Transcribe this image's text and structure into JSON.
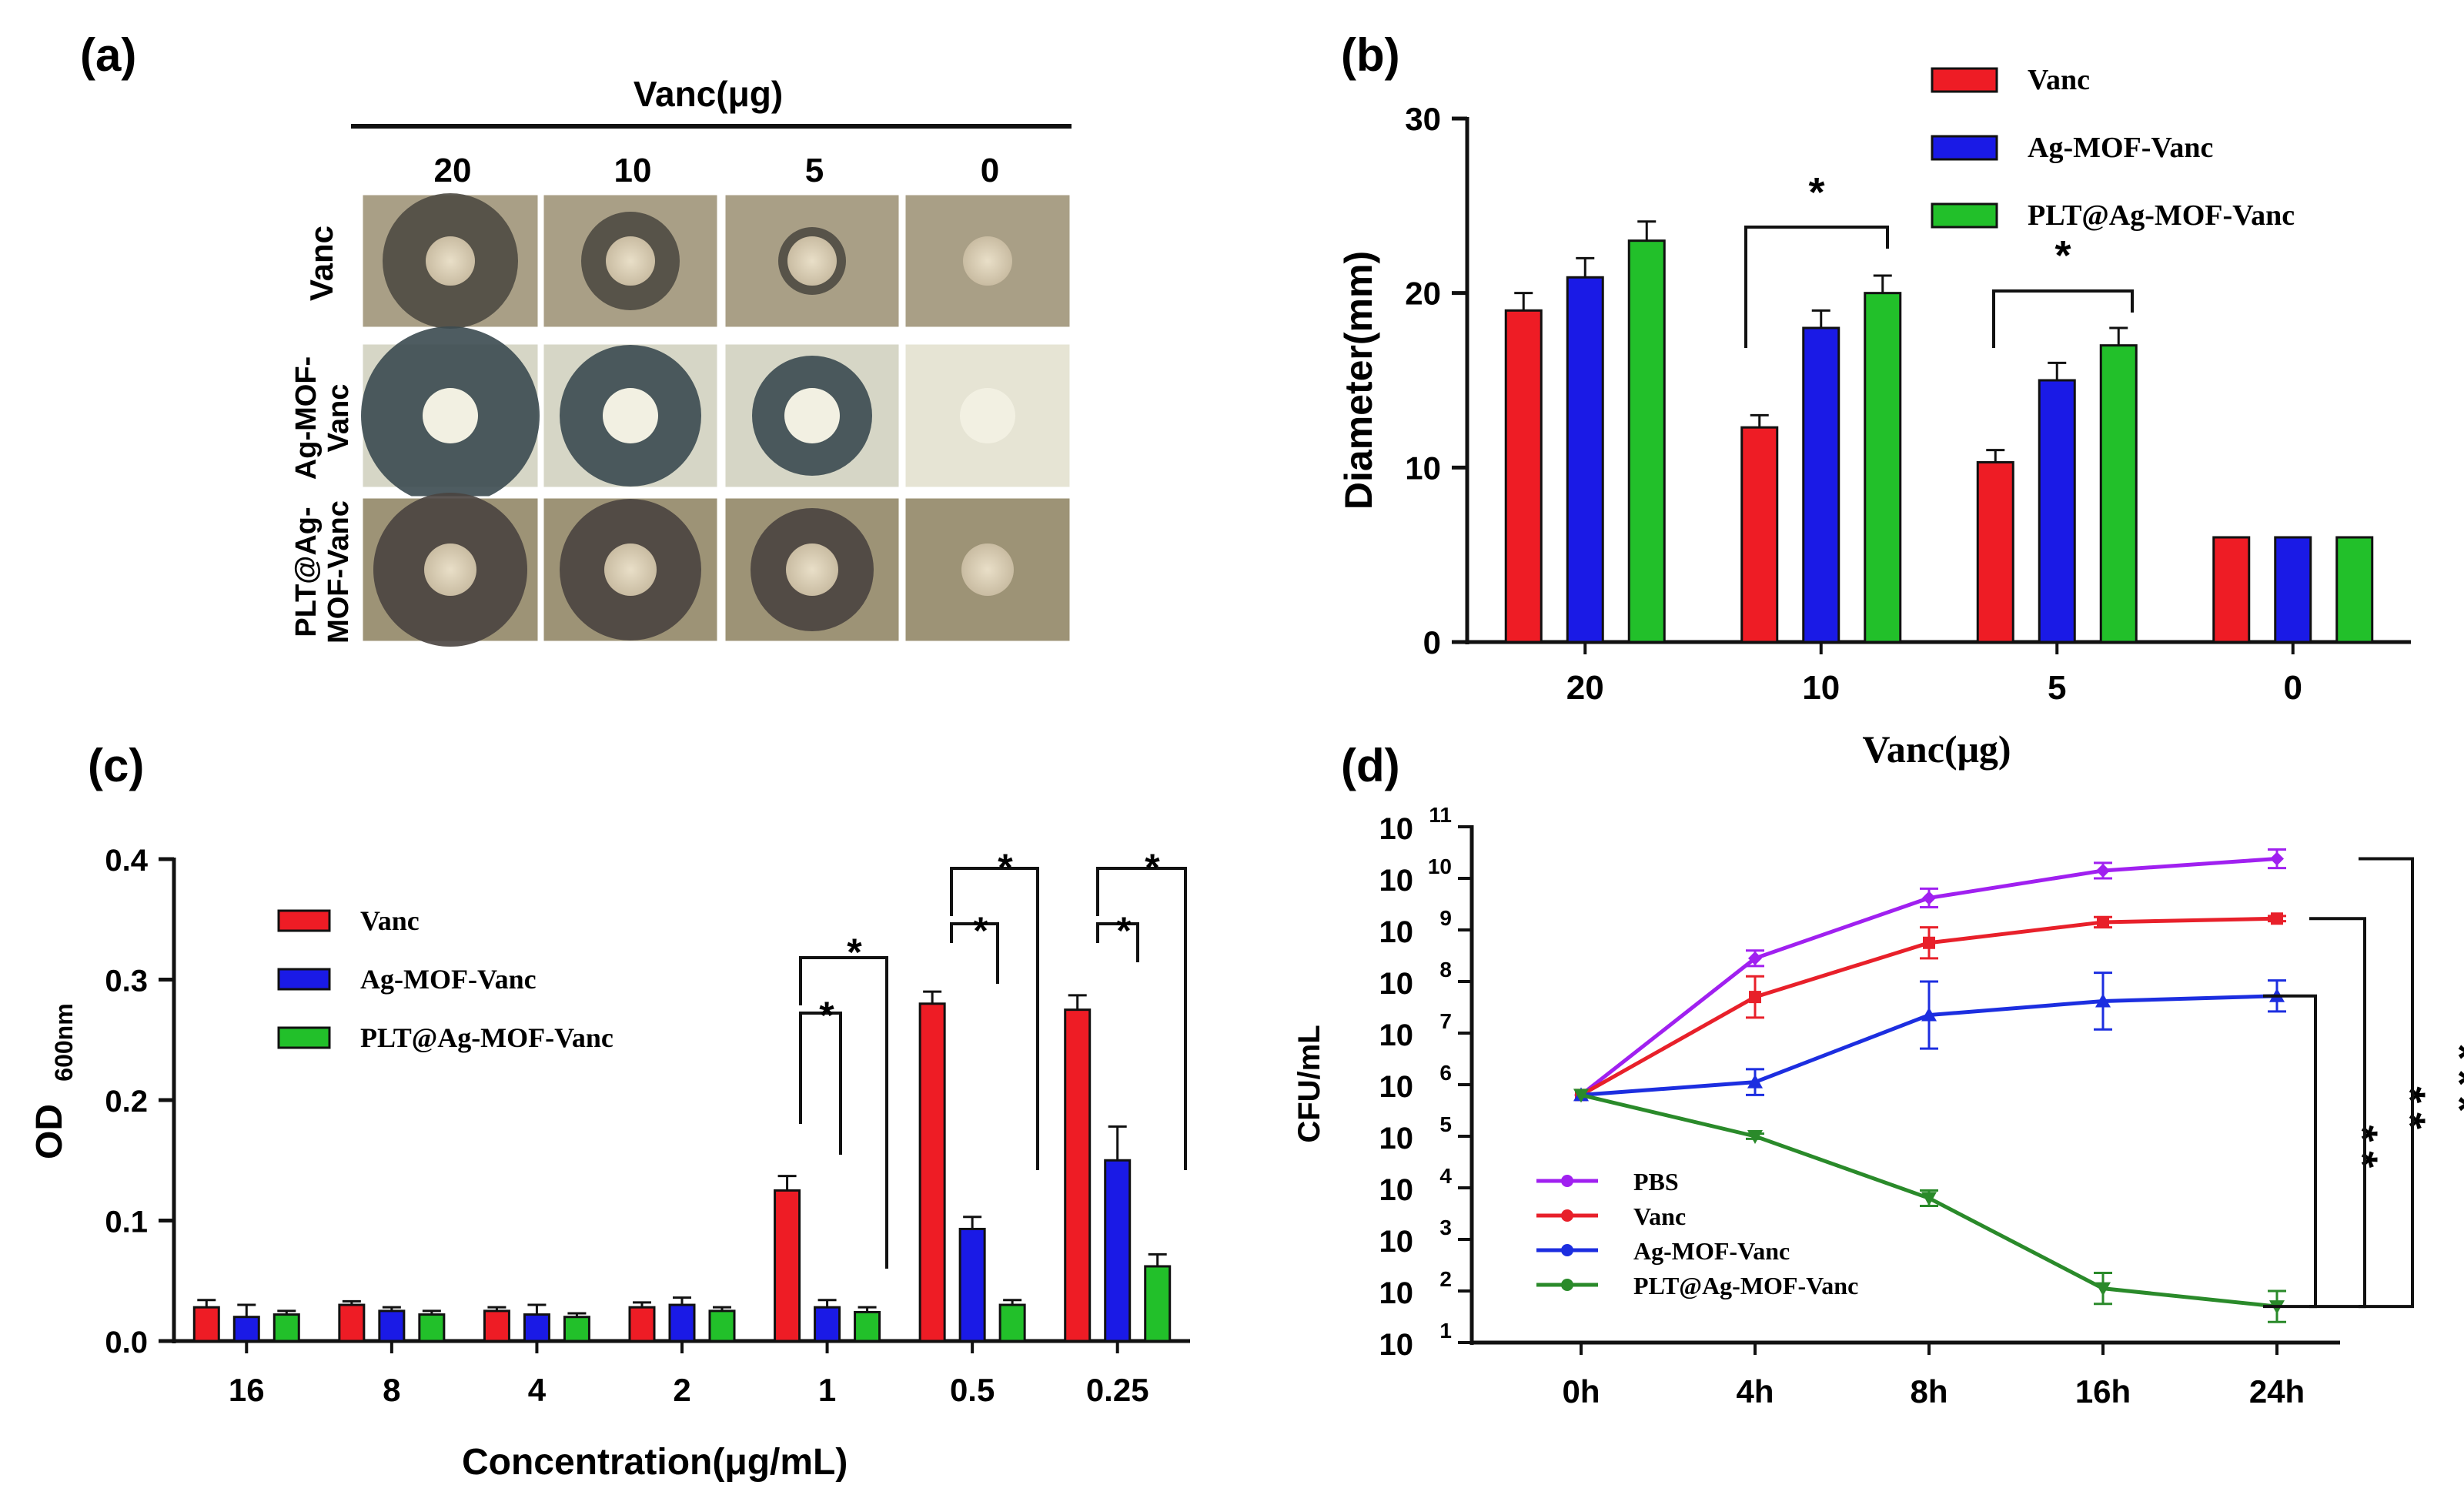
{
  "panel_labels": {
    "a": "(a)",
    "b": "(b)",
    "c": "(c)",
    "d": "(d)"
  },
  "colors": {
    "vanc": "#ee1c25",
    "agmof": "#1a1ae6",
    "plt": "#22c02a",
    "pbs": "#a020f0",
    "line_vanc": "#e8202a",
    "line_agmof": "#1c2ee0",
    "line_plt": "#2a8a2a"
  },
  "plates": {
    "header": "Vanc(μg)",
    "columns": [
      "20",
      "10",
      "5",
      "0"
    ],
    "rows": [
      "Vanc",
      "Ag-MOF-\nVanc",
      "PLT@Ag-\nMOF-Vanc"
    ],
    "row_line1": [
      "Vanc",
      "Ag-MOF-",
      "PLT@Ag-"
    ],
    "row_line2": [
      "",
      "Vanc",
      "MOF-Vanc"
    ]
  },
  "chart_data": [
    {
      "id": "b",
      "type": "bar",
      "title": "",
      "xlabel": "Vanc(μg)",
      "ylabel": "Diameter(mm)",
      "ylim": [
        0,
        30
      ],
      "yticks": [
        0,
        10,
        20,
        30
      ],
      "categories": [
        "20",
        "10",
        "5",
        "0"
      ],
      "series": [
        {
          "name": "Vanc",
          "values": [
            19,
            12.3,
            10.3,
            6
          ],
          "errors": [
            1,
            0.7,
            0.7,
            0
          ]
        },
        {
          "name": "Ag-MOF-Vanc",
          "values": [
            20.9,
            18,
            15,
            6
          ],
          "errors": [
            1.1,
            1,
            1,
            0
          ]
        },
        {
          "name": "PLT@Ag-MOF-Vanc",
          "values": [
            23,
            20,
            17,
            6
          ],
          "errors": [
            1.1,
            1,
            1,
            0
          ]
        }
      ],
      "significance": [
        {
          "label": "*",
          "category": "10"
        },
        {
          "label": "*",
          "category": "5"
        }
      ]
    },
    {
      "id": "c",
      "type": "bar",
      "title": "",
      "xlabel": "Concentration(μg/mL)",
      "ylabel": "OD",
      "ylabel_sub": "600nm",
      "ylim": [
        0,
        0.4
      ],
      "yticks": [
        "0.0",
        "0.1",
        "0.2",
        "0.3",
        "0.4"
      ],
      "categories": [
        "16",
        "8",
        "4",
        "2",
        "1",
        "0.5",
        "0.25"
      ],
      "series": [
        {
          "name": "Vanc",
          "values": [
            0.028,
            0.03,
            0.025,
            0.028,
            0.125,
            0.28,
            0.275
          ],
          "errors": [
            0.006,
            0.003,
            0.003,
            0.004,
            0.012,
            0.01,
            0.012
          ]
        },
        {
          "name": "Ag-MOF-Vanc",
          "values": [
            0.02,
            0.025,
            0.022,
            0.03,
            0.028,
            0.093,
            0.15
          ],
          "errors": [
            0.01,
            0.003,
            0.008,
            0.006,
            0.006,
            0.01,
            0.028
          ]
        },
        {
          "name": "PLT@Ag-MOF-Vanc",
          "values": [
            0.022,
            0.022,
            0.02,
            0.025,
            0.024,
            0.03,
            0.062
          ],
          "errors": [
            0.003,
            0.003,
            0.003,
            0.003,
            0.004,
            0.004,
            0.01
          ]
        }
      ],
      "significance": [
        {
          "label": "*",
          "category": "1"
        },
        {
          "label": "*",
          "category": "1"
        },
        {
          "label": "*",
          "category": "0.5"
        },
        {
          "label": "*",
          "category": "0.5"
        },
        {
          "label": "*",
          "category": "0.25"
        },
        {
          "label": "*",
          "category": "0.25"
        }
      ]
    },
    {
      "id": "d",
      "type": "line",
      "title": "",
      "xlabel": "",
      "ylabel": "CFU/mL",
      "yscale": "log",
      "ylim_exponent": [
        1,
        11
      ],
      "ytick_base": "10",
      "ytick_exponents": [
        "1",
        "2",
        "3",
        "4",
        "5",
        "6",
        "7",
        "8",
        "9",
        "10",
        "11"
      ],
      "categories": [
        "0h",
        "4h",
        "8h",
        "16h",
        "24h"
      ],
      "series": [
        {
          "name": "PBS",
          "log10_values": [
            5.8,
            8.45,
            9.62,
            10.15,
            10.38
          ],
          "log10_errors": [
            0,
            0.15,
            0.18,
            0.15,
            0.18
          ]
        },
        {
          "name": "Vanc",
          "log10_values": [
            5.8,
            7.7,
            8.75,
            9.15,
            9.22
          ],
          "log10_errors": [
            0,
            0.4,
            0.3,
            0.1,
            0.05
          ]
        },
        {
          "name": "Ag-MOF-Vanc",
          "log10_values": [
            5.8,
            6.05,
            7.35,
            7.62,
            7.72
          ],
          "log10_errors": [
            0,
            0.25,
            0.65,
            0.55,
            0.3
          ]
        },
        {
          "name": "PLT@Ag-MOF-Vanc",
          "log10_values": [
            5.8,
            5.0,
            3.8,
            2.05,
            1.7
          ],
          "log10_errors": [
            0,
            0.05,
            0.15,
            0.3,
            0.3
          ]
        }
      ],
      "significance": [
        {
          "label": "**"
        },
        {
          "label": "**"
        },
        {
          "label": "***"
        }
      ]
    }
  ]
}
